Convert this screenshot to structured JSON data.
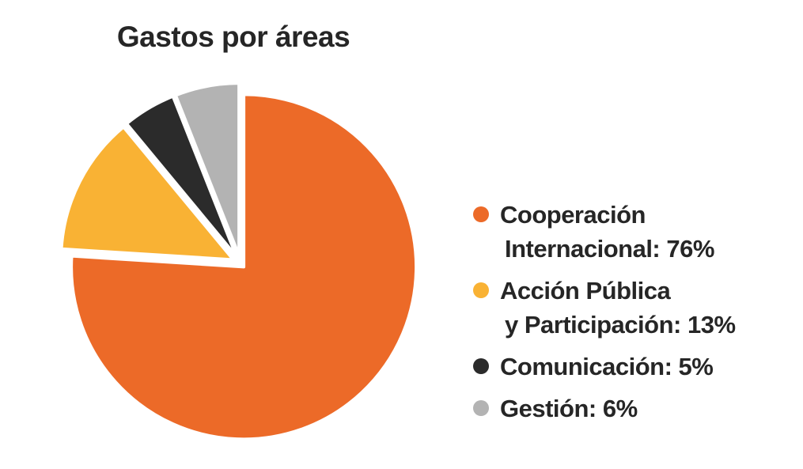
{
  "chart_data": {
    "type": "pie",
    "title": "Gastos por áreas",
    "slices": [
      {
        "label": "Cooperación Internacional",
        "label_lines": [
          "Cooperación",
          "Internacional: 76%"
        ],
        "value": 76,
        "color": "#ec6a28"
      },
      {
        "label": "Acción Pública y Participación",
        "label_lines": [
          "Acción Pública",
          "y Participación: 13%"
        ],
        "value": 13,
        "color": "#f9b234"
      },
      {
        "label": "Comunicación",
        "label_lines": [
          "Comunicación: 5%"
        ],
        "value": 5,
        "color": "#2b2b2b"
      },
      {
        "label": "Gestión",
        "label_lines": [
          "Gestión: 6%"
        ],
        "value": 6,
        "color": "#b3b3b3"
      }
    ],
    "start": "12 o'clock",
    "direction": "clockwise",
    "exploded": true,
    "legend_position": "right"
  }
}
